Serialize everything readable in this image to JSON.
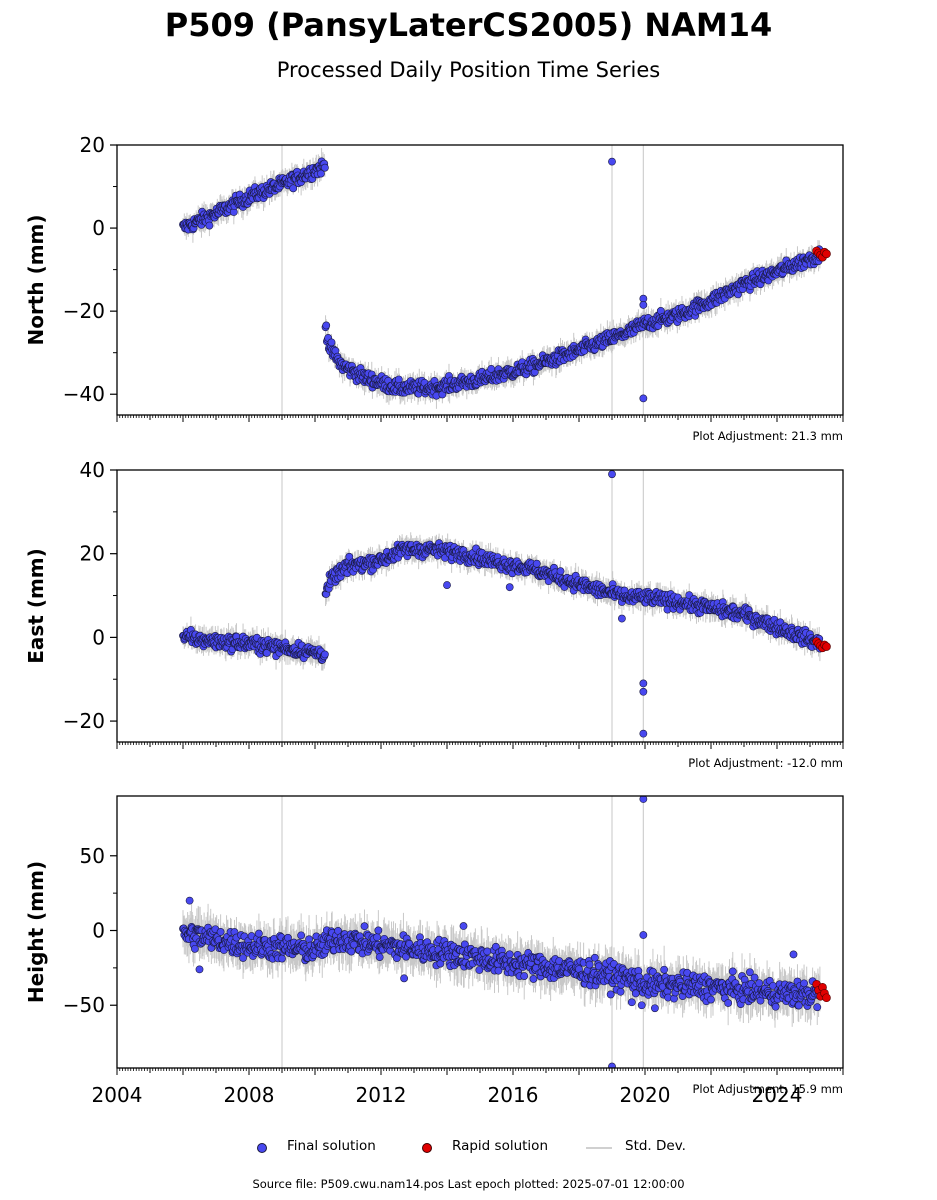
{
  "title": "P509 (PansyLaterCS2005) NAM14",
  "subtitle": "Processed Daily Position Time Series",
  "footer": "Source file: P509.cwu.nam14.pos  Last epoch plotted: 2025-07-01 12:00:00",
  "legend": {
    "final": "Final solution",
    "rapid": "Rapid solution",
    "stddev": "Std. Dev."
  },
  "colors": {
    "final": "#4848f0",
    "rapid": "#e00000",
    "stddev": "#c8c8c8",
    "marker_edge": "#1a1a40"
  },
  "chart_data": [
    {
      "type": "scatter",
      "ylabel": "North (mm)",
      "adjustment": "Plot Adjustment: 21.3 mm",
      "xlim": [
        2004,
        2026
      ],
      "ylim": [
        -45,
        20
      ],
      "yticks": [
        -40,
        -20,
        0,
        20
      ],
      "yticklabels": [
        "−40",
        "−20",
        "0",
        "20"
      ],
      "vlines": [
        2009.0,
        2019.0,
        2019.95
      ],
      "trend": [
        [
          2006.0,
          0
        ],
        [
          2007.0,
          3.5
        ],
        [
          2008.0,
          7.5
        ],
        [
          2009.0,
          10.5
        ],
        [
          2010.3,
          15
        ],
        [
          2010.31,
          -23
        ],
        [
          2010.45,
          -29
        ],
        [
          2010.8,
          -33
        ],
        [
          2011.5,
          -36
        ],
        [
          2012.5,
          -38.5
        ],
        [
          2013.5,
          -38.5
        ],
        [
          2015.0,
          -36.5
        ],
        [
          2016.5,
          -33.5
        ],
        [
          2018.0,
          -29.5
        ],
        [
          2019.5,
          -25
        ],
        [
          2020.0,
          -23
        ],
        [
          2021.0,
          -21
        ],
        [
          2022.0,
          -17.5
        ],
        [
          2023.0,
          -13.5
        ],
        [
          2024.0,
          -10.5
        ],
        [
          2025.3,
          -6.5
        ]
      ],
      "noise": 1.2,
      "outliers": [
        [
          2019.0,
          16
        ],
        [
          2019.95,
          -17
        ],
        [
          2019.95,
          -18.5
        ],
        [
          2019.95,
          -41
        ]
      ],
      "rapid": {
        "start": 2025.2,
        "end": 2025.5,
        "values": [
          -5.5,
          -6,
          -6.5,
          -7,
          -5.8,
          -6.2
        ]
      }
    },
    {
      "type": "scatter",
      "ylabel": "East (mm)",
      "adjustment": "Plot Adjustment: -12.0 mm",
      "xlim": [
        2004,
        2026
      ],
      "ylim": [
        -25,
        40
      ],
      "yticks": [
        -20,
        0,
        20,
        40
      ],
      "yticklabels": [
        "−20",
        "0",
        "20",
        "40"
      ],
      "vlines": [
        2009.0,
        2019.0,
        2019.95
      ],
      "trend": [
        [
          2006.0,
          0
        ],
        [
          2007.0,
          -1
        ],
        [
          2008.0,
          -1.5
        ],
        [
          2009.0,
          -2.5
        ],
        [
          2010.3,
          -4
        ],
        [
          2010.31,
          10
        ],
        [
          2010.5,
          14
        ],
        [
          2011.0,
          17
        ],
        [
          2012.0,
          18.5
        ],
        [
          2012.7,
          21
        ],
        [
          2013.5,
          21
        ],
        [
          2014.5,
          20
        ],
        [
          2015.5,
          18
        ],
        [
          2016.5,
          16.5
        ],
        [
          2017.5,
          14
        ],
        [
          2018.5,
          11.5
        ],
        [
          2019.5,
          9.5
        ],
        [
          2020.0,
          9.5
        ],
        [
          2021.0,
          8.5
        ],
        [
          2022.0,
          7
        ],
        [
          2023.0,
          5.5
        ],
        [
          2024.0,
          2.5
        ],
        [
          2025.3,
          -1.5
        ]
      ],
      "noise": 1.2,
      "outliers": [
        [
          2019.0,
          39
        ],
        [
          2014.0,
          12.5
        ],
        [
          2019.95,
          -11
        ],
        [
          2019.95,
          -13
        ],
        [
          2019.95,
          -23
        ],
        [
          2015.9,
          12
        ],
        [
          2019.3,
          4.5
        ]
      ],
      "rapid": {
        "start": 2025.2,
        "end": 2025.5,
        "values": [
          -1,
          -1.5,
          -2,
          -2.5,
          -1.8,
          -2.2
        ]
      }
    },
    {
      "type": "scatter",
      "ylabel": "Height (mm)",
      "adjustment": "Plot Adjustment: 15.9 mm",
      "xlim": [
        2004,
        2026
      ],
      "xticks": [
        2004,
        2008,
        2012,
        2016,
        2020,
        2024
      ],
      "xticklabels": [
        "2004",
        "2008",
        "2012",
        "2016",
        "2020",
        "2024"
      ],
      "ylim": [
        -92,
        90
      ],
      "yticks": [
        -50,
        0,
        50
      ],
      "yticklabels": [
        "−50",
        "0",
        "50"
      ],
      "vlines": [
        2009.0,
        2019.0,
        2019.95
      ],
      "trend": [
        [
          2006.0,
          -2
        ],
        [
          2008.0,
          -10
        ],
        [
          2010.0,
          -13
        ],
        [
          2010.7,
          -5
        ],
        [
          2012.0,
          -10
        ],
        [
          2014.0,
          -15
        ],
        [
          2016.0,
          -22
        ],
        [
          2018.0,
          -27
        ],
        [
          2019.5,
          -32
        ],
        [
          2020.0,
          -36
        ],
        [
          2022.0,
          -38
        ],
        [
          2024.0,
          -42
        ],
        [
          2025.3,
          -43
        ]
      ],
      "noise": 6,
      "outliers": [
        [
          2006.2,
          20
        ],
        [
          2006.5,
          -26
        ],
        [
          2012.7,
          -32
        ],
        [
          2014.5,
          3
        ],
        [
          2019.95,
          88
        ],
        [
          2019.95,
          -3
        ],
        [
          2019.9,
          -50
        ],
        [
          2020.3,
          -52
        ],
        [
          2024.5,
          -16
        ],
        [
          2019.0,
          -91
        ],
        [
          2019.6,
          -48
        ]
      ],
      "rapid": {
        "start": 2025.2,
        "end": 2025.5,
        "values": [
          -36,
          -40,
          -44,
          -38,
          -42,
          -45
        ]
      }
    }
  ]
}
